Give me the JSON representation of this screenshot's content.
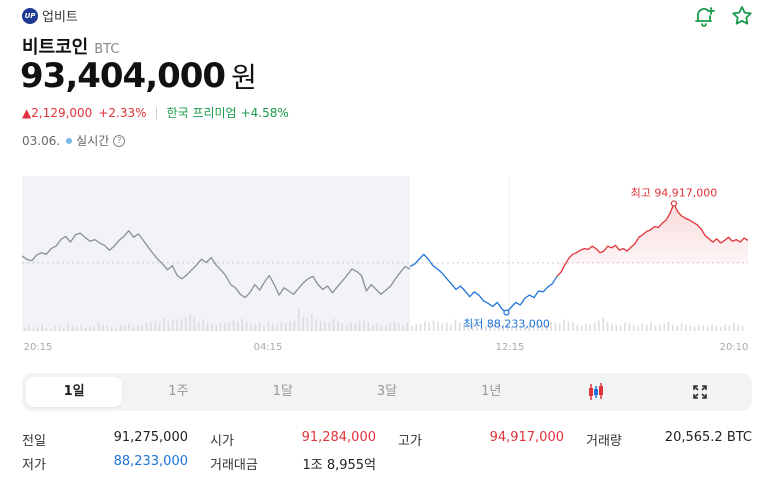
{
  "exchange": {
    "logo_text": "UP",
    "name": "업비트"
  },
  "coin": {
    "name": "비트코인",
    "ticker": "BTC"
  },
  "price": {
    "value": "93,404,000",
    "unit": "원"
  },
  "change": {
    "amount": "2,129,000",
    "percent": "+2.33%",
    "premium_label": "한국 프리미엄",
    "premium_value": "+4.58%"
  },
  "status": {
    "date": "03.06.",
    "realtime_label": "실시간",
    "help_glyph": "?"
  },
  "icons": [
    "add-alert-icon",
    "favorite-star-icon",
    "candlestick-icon",
    "expand-icon"
  ],
  "colors": {
    "up": "#e0323a",
    "down": "#1e73d8",
    "past": "#8b8f98",
    "premium": "#1a9a4a",
    "accent": "#1a9a4a"
  },
  "chart_data": {
    "type": "line",
    "x_tick_labels": [
      "20:15",
      "04:15",
      "12:15",
      "20:10"
    ],
    "reference_price": 91275000,
    "high": {
      "label": "최고 94,917,000",
      "value": 94917000
    },
    "low": {
      "label": "최저 88,233,000",
      "value": 88233000
    },
    "ylim": [
      87100000,
      96600000
    ],
    "series": [
      {
        "values": [
          91700000,
          91500000,
          91400000,
          91750000,
          91900000,
          91800000,
          92150000,
          92300000,
          92700000,
          92900000,
          92550000,
          93000000,
          93100000,
          92850000,
          92600000,
          92700000,
          92500000,
          92350000,
          92050000,
          92300000,
          92650000,
          92900000,
          93250000,
          92850000,
          93050000,
          92650000,
          92250000,
          91850000,
          91500000,
          91200000,
          90850000,
          91100000,
          90500000,
          90300000,
          90550000,
          90850000,
          91150000,
          91500000,
          91300000,
          91600000,
          91150000,
          90850000,
          90500000,
          89950000,
          89750000,
          89350000,
          89150000,
          89450000,
          89950000,
          89600000,
          90100000,
          90500000,
          89950000,
          89300000,
          89750000,
          89550000,
          89350000,
          89700000,
          90050000,
          90300000,
          90450000,
          89950000,
          89650000,
          89850000,
          89450000,
          89800000,
          90150000,
          90500000,
          90900000,
          90750000,
          90500000,
          89550000,
          89950000,
          89650000,
          89350000,
          89600000,
          89850000,
          90300000,
          90700000,
          91050000,
          90900000
        ]
      },
      {
        "values": [
          91050000,
          91200000,
          91500000,
          91800000,
          91500000,
          91100000,
          90900000,
          90650000,
          90300000,
          90000000,
          89650000,
          89850000,
          89550000,
          89200000,
          89500000,
          89300000,
          88950000,
          88800000,
          88600000,
          88850000,
          88450000,
          88233000,
          88550000,
          88850000,
          88700000,
          89100000,
          89300000,
          89150000,
          89550000,
          89500000,
          89800000,
          90000000,
          90450000
        ]
      },
      {
        "values": [
          90450000,
          90700000,
          91150000,
          91550000,
          91800000,
          91900000,
          92050000,
          92150000,
          92100000,
          92300000,
          92150000,
          91900000,
          92000000,
          92300000,
          92200000,
          92350000,
          92050000,
          92150000,
          92000000,
          92250000,
          92450000,
          92850000,
          93000000,
          93200000,
          93300000,
          93500000,
          93450000,
          93700000,
          93900000,
          94300000,
          94917000,
          94400000,
          94150000,
          94000000,
          93900000,
          93750000,
          93600000,
          93350000,
          92950000,
          92750000,
          92550000,
          92750000,
          92500000,
          92650000,
          92850000,
          92600000,
          92700000,
          92550000,
          92800000,
          92650000
        ]
      }
    ],
    "volume": [
      3,
      5,
      2,
      4,
      6,
      3,
      2,
      5,
      4,
      3,
      7,
      5,
      4,
      6,
      3,
      5,
      4,
      8,
      6,
      5,
      4,
      3,
      6,
      5,
      7,
      4,
      5,
      6,
      8,
      9,
      10,
      8,
      12,
      9,
      11,
      10,
      12,
      14,
      16,
      13,
      9,
      11,
      8,
      7,
      6,
      8,
      7,
      9,
      10,
      8,
      12,
      9,
      7,
      6,
      8,
      5,
      9,
      7,
      6,
      8,
      7,
      9,
      10,
      21,
      13,
      12,
      16,
      11,
      10,
      9,
      8,
      12,
      9,
      7,
      6,
      8,
      7,
      9,
      10,
      8,
      6,
      7,
      5,
      6,
      8,
      9,
      7,
      6,
      8,
      5,
      6,
      7,
      9,
      8,
      10,
      9,
      7,
      8,
      6,
      11,
      8,
      7,
      6,
      8,
      9,
      6,
      5,
      7,
      9,
      8,
      6,
      7,
      5,
      4,
      6,
      5,
      7,
      6,
      8,
      7,
      6,
      9,
      8,
      7,
      11,
      9,
      8,
      6,
      5,
      7,
      6,
      8,
      10,
      13,
      9,
      7,
      6,
      5,
      8,
      7,
      6,
      5,
      7,
      6,
      8,
      5,
      6,
      7,
      9,
      6,
      5,
      7,
      6,
      5,
      4,
      6,
      5,
      4,
      6,
      5,
      4,
      6,
      5,
      8,
      6,
      5
    ]
  },
  "periods": [
    {
      "label": "1일"
    },
    {
      "label": "1주"
    },
    {
      "label": "1달"
    },
    {
      "label": "3달"
    },
    {
      "label": "1년"
    }
  ],
  "stats": {
    "row1": [
      {
        "label": "전일",
        "value": "91,275,000",
        "color": ""
      },
      {
        "label": "시가",
        "value": "91,284,000",
        "color": "red"
      },
      {
        "label": "고가",
        "value": "94,917,000",
        "color": "red"
      },
      {
        "label": "거래량",
        "value": "20,565.2 BTC",
        "color": ""
      }
    ],
    "row2": [
      {
        "label": "저가",
        "value": "88,233,000",
        "color": "blue"
      },
      {
        "label": "거래대금",
        "value": "1조 8,955억",
        "color": ""
      }
    ]
  }
}
